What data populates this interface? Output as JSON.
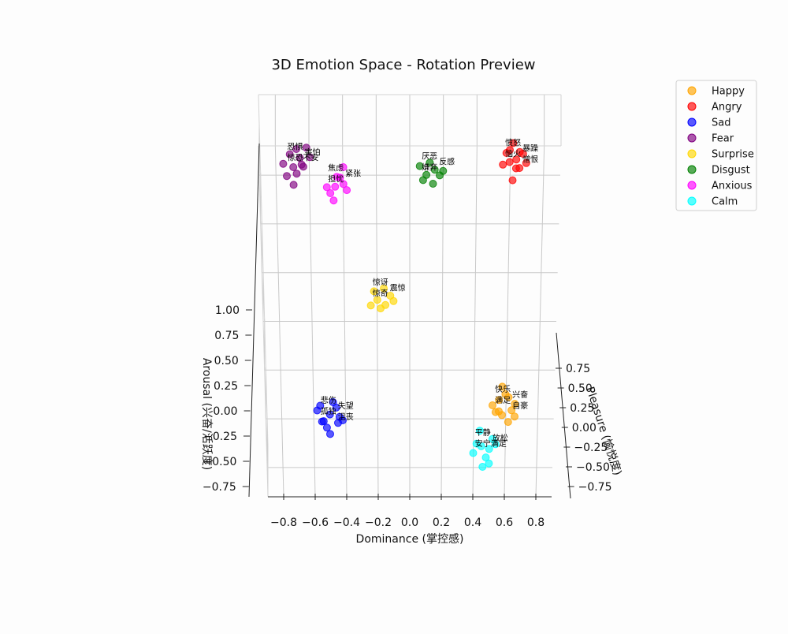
{
  "chart_data": {
    "type": "scatter",
    "projection": "3d",
    "title": "3D Emotion Space - Rotation Preview",
    "xlabel": "Dominance (掌控感)",
    "ylabel": "Pleasure (愉悦度)",
    "zlabel": "Arousal (兴奋/活跃度)",
    "xlim": [
      -0.9,
      0.9
    ],
    "ylim": [
      -0.9,
      0.9
    ],
    "zlim": [
      -0.85,
      1.15
    ],
    "x_ticks": [
      "−0.8",
      "−0.6",
      "−0.4",
      "−0.2",
      "0.0",
      "0.2",
      "0.4",
      "0.6",
      "0.8"
    ],
    "y_ticks": [
      "0.75",
      "0.50",
      "0.25",
      "0.00",
      "−0.25",
      "−0.50",
      "−0.75"
    ],
    "z_ticks": [
      "1.00",
      "0.75",
      "0.50",
      "0.25",
      "0.00",
      "−0.25",
      "−0.50",
      "−0.75"
    ],
    "grid": true,
    "legend_position": "top-right",
    "series": [
      {
        "name": "Happy",
        "color": "#ffa500",
        "points": [
          [
            0.56,
            0.62,
            0.8
          ],
          [
            0.62,
            0.6,
            0.75
          ],
          [
            0.58,
            0.7,
            0.82
          ],
          [
            0.64,
            0.66,
            0.7
          ],
          [
            0.54,
            0.68,
            0.78
          ],
          [
            0.6,
            0.58,
            0.72
          ],
          [
            0.66,
            0.64,
            0.8
          ],
          [
            0.52,
            0.64,
            0.74
          ],
          [
            0.58,
            0.56,
            0.86
          ],
          [
            0.62,
            0.72,
            0.7
          ],
          [
            0.56,
            0.66,
            0.66
          ],
          [
            0.66,
            0.7,
            0.76
          ]
        ],
        "point_labels": [
          "快乐",
          "兴奋",
          "满足",
          "自豪"
        ]
      },
      {
        "name": "Angry",
        "color": "#ff0000",
        "points": [
          [
            0.6,
            -0.6,
            0.8
          ],
          [
            0.64,
            -0.62,
            0.75
          ],
          [
            0.58,
            -0.66,
            0.7
          ],
          [
            0.66,
            -0.58,
            0.72
          ],
          [
            0.62,
            -0.7,
            0.78
          ],
          [
            0.68,
            -0.64,
            0.82
          ],
          [
            0.56,
            -0.6,
            0.7
          ],
          [
            0.64,
            -0.56,
            0.86
          ],
          [
            0.6,
            -0.68,
            0.66
          ],
          [
            0.7,
            -0.6,
            0.76
          ],
          [
            0.62,
            -0.52,
            0.7
          ],
          [
            0.66,
            -0.66,
            0.74
          ]
        ],
        "point_labels": [
          "愤怒",
          "暴躁",
          "恼火",
          "憎恨"
        ]
      },
      {
        "name": "Sad",
        "color": "#0000ff",
        "points": [
          [
            -0.5,
            0.55,
            -0.3
          ],
          [
            -0.45,
            0.6,
            -0.25
          ],
          [
            -0.55,
            0.58,
            -0.35
          ],
          [
            -0.48,
            0.5,
            -0.2
          ],
          [
            -0.52,
            0.62,
            -0.28
          ],
          [
            -0.44,
            0.56,
            -0.32
          ],
          [
            -0.58,
            0.54,
            -0.22
          ],
          [
            -0.5,
            0.64,
            -0.38
          ],
          [
            -0.46,
            0.52,
            -0.26
          ],
          [
            -0.54,
            0.6,
            -0.18
          ],
          [
            -0.42,
            0.58,
            -0.3
          ],
          [
            -0.56,
            0.5,
            -0.34
          ]
        ],
        "point_labels": [
          "悲伤",
          "失望",
          "孤独",
          "沮丧"
        ]
      },
      {
        "name": "Fear",
        "color": "#800080",
        "points": [
          [
            -0.7,
            -0.6,
            0.6
          ],
          [
            -0.65,
            -0.62,
            0.55
          ],
          [
            -0.72,
            -0.66,
            0.65
          ],
          [
            -0.68,
            -0.58,
            0.5
          ],
          [
            -0.62,
            -0.7,
            0.6
          ],
          [
            -0.74,
            -0.56,
            0.56
          ],
          [
            -0.66,
            -0.64,
            0.66
          ],
          [
            -0.7,
            -0.52,
            0.52
          ],
          [
            -0.64,
            -0.6,
            0.62
          ],
          [
            -0.76,
            -0.62,
            0.58
          ],
          [
            -0.6,
            -0.66,
            0.54
          ],
          [
            -0.68,
            -0.68,
            0.7
          ]
        ],
        "point_labels": [
          "恐惧",
          "害怕",
          "惊恐不安"
        ]
      },
      {
        "name": "Surprise",
        "color": "#ffd700",
        "points": [
          [
            -0.2,
            0.1,
            0.75
          ],
          [
            -0.15,
            0.12,
            0.7
          ],
          [
            -0.22,
            0.06,
            0.78
          ],
          [
            -0.18,
            0.14,
            0.72
          ],
          [
            -0.12,
            0.08,
            0.76
          ],
          [
            -0.24,
            0.12,
            0.68
          ],
          [
            -0.16,
            0.04,
            0.74
          ],
          [
            -0.1,
            0.1,
            0.7
          ]
        ],
        "point_labels": [
          "惊讶",
          "震惊",
          "惊奇"
        ]
      },
      {
        "name": "Disgust",
        "color": "#008000",
        "points": [
          [
            0.1,
            -0.6,
            0.3
          ],
          [
            0.15,
            -0.62,
            0.35
          ],
          [
            0.08,
            -0.58,
            0.25
          ],
          [
            0.12,
            -0.66,
            0.32
          ],
          [
            0.18,
            -0.6,
            0.28
          ],
          [
            0.06,
            -0.64,
            0.34
          ],
          [
            0.14,
            -0.56,
            0.26
          ],
          [
            0.2,
            -0.62,
            0.3
          ]
        ],
        "point_labels": [
          "厌恶",
          "反感",
          "嫌弃"
        ]
      },
      {
        "name": "Anxious",
        "color": "#ff00ff",
        "points": [
          [
            -0.45,
            -0.5,
            0.6
          ],
          [
            -0.4,
            -0.52,
            0.55
          ],
          [
            -0.48,
            -0.46,
            0.65
          ],
          [
            -0.42,
            -0.56,
            0.5
          ],
          [
            -0.5,
            -0.5,
            0.58
          ],
          [
            -0.38,
            -0.48,
            0.62
          ],
          [
            -0.44,
            -0.54,
            0.68
          ],
          [
            -0.46,
            -0.44,
            0.52
          ],
          [
            -0.4,
            -0.6,
            0.6
          ]
        ],
        "point_labels": [
          "焦虑",
          "紧张",
          "担忧"
        ]
      },
      {
        "name": "Calm",
        "color": "#00ffff",
        "points": [
          [
            0.45,
            0.7,
            -0.4
          ],
          [
            0.5,
            0.72,
            -0.35
          ],
          [
            0.42,
            0.68,
            -0.45
          ],
          [
            0.48,
            0.76,
            -0.38
          ],
          [
            0.52,
            0.66,
            -0.42
          ],
          [
            0.4,
            0.74,
            -0.36
          ],
          [
            0.46,
            0.8,
            -0.44
          ],
          [
            0.54,
            0.7,
            -0.32
          ],
          [
            0.44,
            0.62,
            -0.4
          ],
          [
            0.5,
            0.78,
            -0.46
          ]
        ],
        "point_labels": [
          "平静",
          "放松",
          "安宁满足"
        ]
      }
    ]
  }
}
